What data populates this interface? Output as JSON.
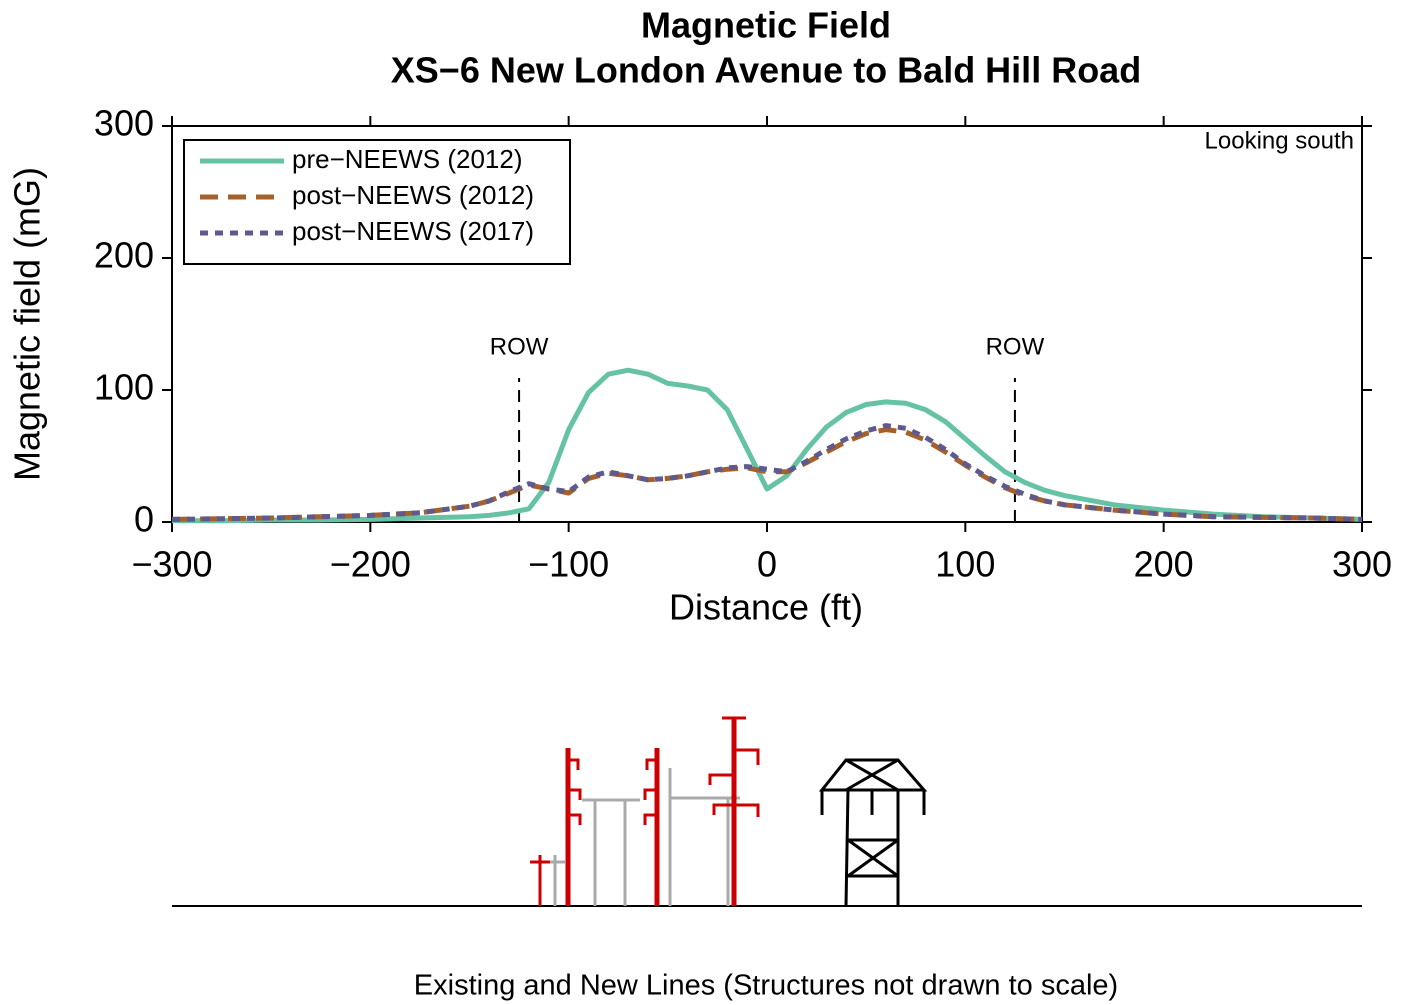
{
  "chart_data": {
    "type": "line",
    "title": "Magnetic Field",
    "subtitle": "XS−6 New London Avenue to Bald Hill Road",
    "x_label": "Distance (ft)",
    "y_label": "Magnetic field (mG)",
    "annotation": "Looking south",
    "caption": "Existing and New Lines (Structures not drawn to scale)",
    "row_lines": [
      {
        "label": "ROW",
        "x": -125
      },
      {
        "label": "ROW",
        "x": 125
      }
    ],
    "x": [
      -300,
      -275,
      -250,
      -225,
      -200,
      -175,
      -150,
      -140,
      -130,
      -120,
      -110,
      -100,
      -90,
      -80,
      -70,
      -60,
      -50,
      -40,
      -30,
      -20,
      -10,
      0,
      10,
      20,
      30,
      40,
      50,
      60,
      70,
      80,
      90,
      100,
      110,
      120,
      130,
      140,
      150,
      175,
      200,
      225,
      250,
      275,
      300
    ],
    "series": [
      {
        "name": "pre−NEEWS (2012)",
        "color": "#66c2a5",
        "dash": "solid",
        "values": [
          1,
          1,
          1.5,
          1.5,
          2,
          3,
          4,
          5,
          7,
          10,
          30,
          70,
          98,
          112,
          115,
          112,
          105,
          103,
          100,
          85,
          55,
          25,
          35,
          55,
          72,
          83,
          89,
          91,
          90,
          85,
          76,
          63,
          50,
          38,
          30,
          24,
          20,
          13,
          9,
          6,
          4,
          3,
          2
        ]
      },
      {
        "name": "post−NEEWS (2012)",
        "color": "#a6612a",
        "dash": "dashed",
        "values": [
          2,
          2.5,
          3,
          4,
          5,
          7,
          12,
          16,
          22,
          28,
          25,
          22,
          33,
          37,
          35,
          32,
          33,
          35,
          38,
          40,
          41,
          38,
          38,
          45,
          53,
          61,
          67,
          70,
          68,
          62,
          53,
          43,
          34,
          26,
          20,
          16,
          13,
          9,
          6,
          4,
          3.5,
          3,
          2
        ]
      },
      {
        "name": "post−NEEWS (2017)",
        "color": "#5e5a8e",
        "dash": "dotted",
        "values": [
          2,
          2.5,
          3,
          4,
          5,
          7,
          12,
          16,
          23,
          29,
          25,
          23,
          34,
          38,
          35,
          32,
          33,
          35,
          38,
          41,
          42,
          40,
          38,
          46,
          55,
          63,
          69,
          73,
          71,
          64,
          55,
          44,
          35,
          27,
          21,
          16,
          13,
          9,
          6,
          4,
          3.5,
          3,
          2
        ]
      }
    ],
    "xlim": [
      -300,
      300
    ],
    "ylim": [
      0,
      300
    ],
    "xticks": [
      {
        "value": -300,
        "label": "−300"
      },
      {
        "value": -200,
        "label": "−200"
      },
      {
        "value": -100,
        "label": "−100"
      },
      0,
      100,
      200,
      300
    ],
    "yticks": [
      0,
      100,
      200,
      300
    ],
    "legend": "top-left"
  }
}
